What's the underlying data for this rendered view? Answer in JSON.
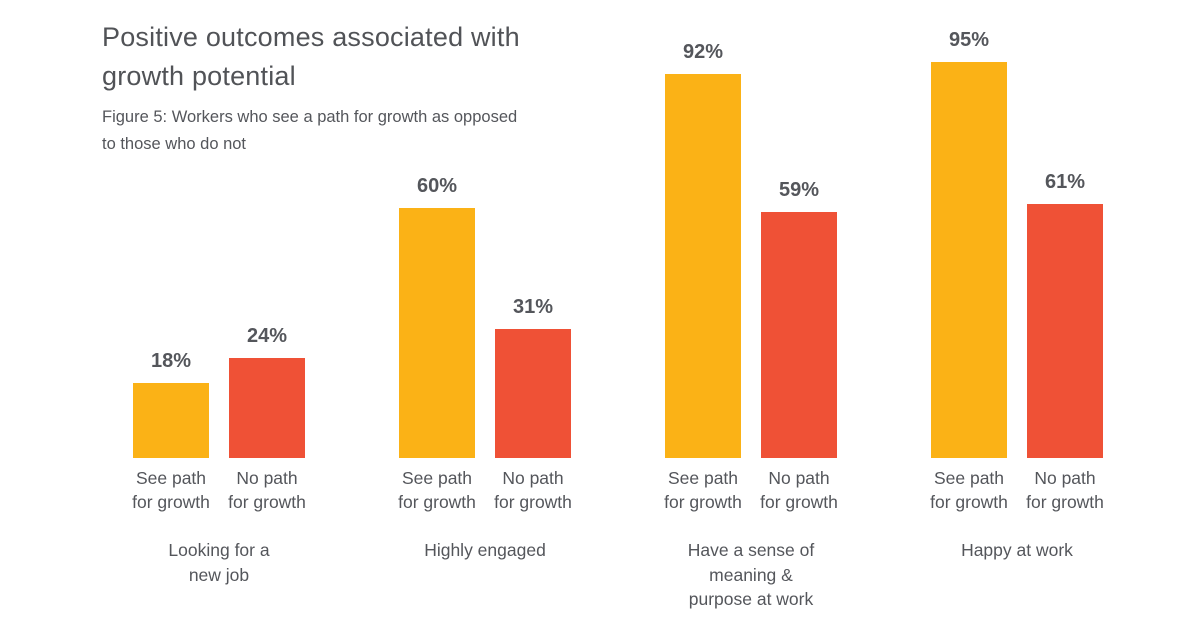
{
  "header": {
    "title": "Positive outcomes associated with\ngrowth potential",
    "subtitle": "Figure 5: Workers who see a path for growth as opposed\nto those who do not"
  },
  "colors": {
    "see_path_bar": "#FBB216",
    "no_path_bar": "#EF5136",
    "title_text": "#515357",
    "body_text": "#54565B",
    "background": "#FFFFFF"
  },
  "chart_data": {
    "type": "bar",
    "title": "Positive outcomes associated with growth potential",
    "subtitle": "Figure 5: Workers who see a path for growth as opposed to those who do not",
    "categories": [
      "Looking for a\nnew job",
      "Highly engaged",
      "Have a sense of\nmeaning &\npurpose at work",
      "Happy at work"
    ],
    "series": [
      {
        "name": "See path\nfor growth",
        "color": "#FBB216",
        "values": [
          18,
          60,
          92,
          95
        ]
      },
      {
        "name": "No path\nfor growth",
        "color": "#EF5136",
        "values": [
          24,
          31,
          59,
          61
        ]
      }
    ],
    "value_suffix": "%",
    "value_labels": [
      "18%",
      "24%",
      "60%",
      "31%",
      "92%",
      "59%",
      "95%",
      "61%"
    ],
    "ylim": [
      0,
      100
    ],
    "grid": false,
    "axis_lines": false,
    "legend_position": "below-each-bar",
    "value_label_position": "above-bars"
  }
}
